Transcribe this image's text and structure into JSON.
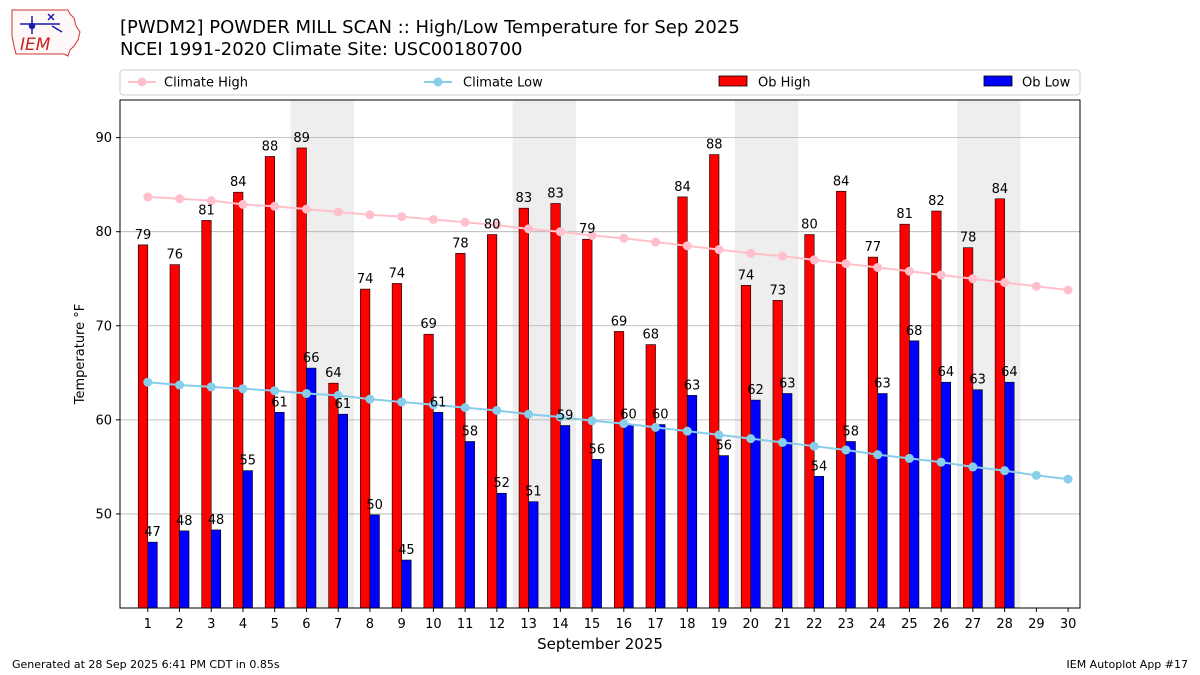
{
  "header": {
    "title_line1": "[PWDM2] POWDER MILL SCAN :: High/Low Temperature for Sep 2025",
    "title_line2": "NCEI 1991-2020 Climate Site: USC00180700",
    "logo_text": "IEM"
  },
  "footer": {
    "generated": "Generated at 28 Sep 2025 6:41 PM CDT in 0.85s",
    "app": "IEM Autoplot App #17"
  },
  "colors": {
    "ob_high": "#ff0000",
    "ob_low": "#0000ff",
    "climate_high": "#ffc0cb",
    "climate_low": "#87ceeb",
    "weekend_shade": "#eeeeee",
    "grid": "#b0b0b0"
  },
  "chart_data": {
    "type": "bar",
    "xlabel": "September 2025",
    "ylabel": "Temperature °F",
    "ylim": [
      40,
      94
    ],
    "yticks": [
      50,
      60,
      70,
      80,
      90
    ],
    "grid": "horizontal",
    "legend_position": "top",
    "categories": [
      "1",
      "2",
      "3",
      "4",
      "5",
      "6",
      "7",
      "8",
      "9",
      "10",
      "11",
      "12",
      "13",
      "14",
      "15",
      "16",
      "17",
      "18",
      "19",
      "20",
      "21",
      "22",
      "23",
      "24",
      "25",
      "26",
      "27",
      "28",
      "29",
      "30"
    ],
    "shaded_weekend_days": [
      [
        6,
        7
      ],
      [
        13,
        14
      ],
      [
        20,
        21
      ],
      [
        27,
        28
      ]
    ],
    "series": [
      {
        "name": "Ob High",
        "kind": "bar",
        "values": [
          78.6,
          76.5,
          81.2,
          84.2,
          88.0,
          88.9,
          63.9,
          73.9,
          74.5,
          69.1,
          77.7,
          79.7,
          82.5,
          83.0,
          79.2,
          69.4,
          68.0,
          83.7,
          88.2,
          74.3,
          72.7,
          79.7,
          84.3,
          77.3,
          80.8,
          82.2,
          78.3,
          83.5,
          null,
          null
        ],
        "labels": [
          "79",
          "76",
          "81",
          "84",
          "88",
          "89",
          "64",
          "74",
          "74",
          "69",
          "78",
          "80",
          "83",
          "83",
          "79",
          "69",
          "68",
          "84",
          "88",
          "74",
          "73",
          "80",
          "84",
          "77",
          "81",
          "82",
          "78",
          "84",
          null,
          null
        ]
      },
      {
        "name": "Ob Low",
        "kind": "bar",
        "values": [
          47.0,
          48.2,
          48.3,
          54.6,
          60.8,
          65.5,
          60.6,
          49.9,
          45.1,
          60.8,
          57.7,
          52.2,
          51.3,
          59.4,
          55.8,
          59.5,
          59.5,
          62.6,
          56.2,
          62.1,
          62.8,
          54.0,
          57.7,
          62.8,
          68.4,
          64.0,
          63.2,
          64.0,
          null,
          null
        ],
        "labels": [
          "47",
          "48",
          "48",
          "55",
          "61",
          "66",
          "61",
          "50",
          "45",
          "61",
          "58",
          "52",
          "51",
          "59",
          "56",
          "60",
          "60",
          "63",
          "56",
          "62",
          "63",
          "54",
          "58",
          "63",
          "68",
          "64",
          "63",
          "64",
          null,
          null
        ]
      },
      {
        "name": "Climate High",
        "kind": "line",
        "values": [
          83.7,
          83.5,
          83.3,
          82.9,
          82.7,
          82.4,
          82.1,
          81.8,
          81.6,
          81.3,
          81.0,
          80.7,
          80.3,
          80.0,
          79.6,
          79.3,
          78.9,
          78.5,
          78.1,
          77.7,
          77.4,
          77.0,
          76.6,
          76.2,
          75.8,
          75.4,
          75.0,
          74.6,
          74.2,
          73.8
        ]
      },
      {
        "name": "Climate Low",
        "kind": "line",
        "values": [
          64.0,
          63.7,
          63.5,
          63.3,
          63.1,
          62.8,
          62.6,
          62.2,
          61.9,
          61.6,
          61.3,
          61.0,
          60.6,
          60.3,
          59.9,
          59.6,
          59.2,
          58.8,
          58.4,
          58.0,
          57.6,
          57.2,
          56.8,
          56.3,
          55.9,
          55.5,
          55.0,
          54.6,
          54.1,
          53.7
        ]
      }
    ]
  }
}
